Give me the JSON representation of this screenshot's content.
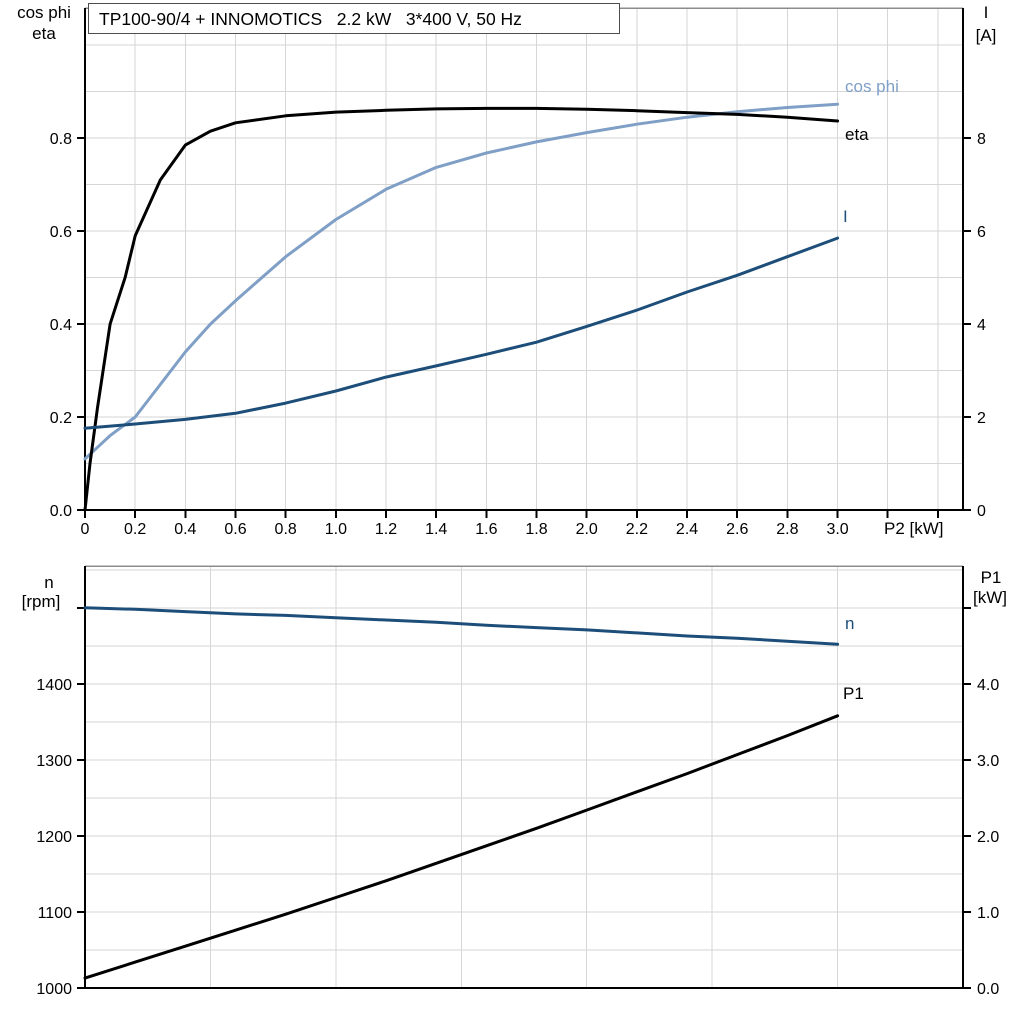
{
  "chart_data": {
    "type": "line",
    "charts": [
      {
        "id": "top",
        "title": "TP100-90/4 + INNOMOTICS   2.2 kW   3*400 V, 50 Hz",
        "x_axis": {
          "title": "P2 [kW]",
          "min": 0,
          "max": 3.5,
          "grid_step": 0.2,
          "ticks": [
            0,
            0.2,
            0.4,
            0.6,
            0.8,
            1.0,
            1.2,
            1.4,
            1.6,
            1.8,
            2.0,
            2.2,
            2.4,
            2.6,
            2.8,
            3.0,
            3.2,
            3.4
          ],
          "tick_labels": [
            "0",
            "0.2",
            "0.4",
            "0.6",
            "0.8",
            "1.0",
            "1.2",
            "1.4",
            "1.6",
            "1.8",
            "2.0",
            "2.2",
            "2.4",
            "2.6",
            "2.8",
            "3.0",
            "",
            ""
          ]
        },
        "left_axis": {
          "title_lines": [
            "cos phi",
            "eta"
          ],
          "min": 0,
          "max": 1.08,
          "grid_step": 0.1,
          "ticks": [
            0,
            0.2,
            0.4,
            0.6,
            0.8
          ],
          "tick_labels": [
            "0.0",
            "0.2",
            "0.4",
            "0.6",
            "0.8"
          ]
        },
        "right_axis": {
          "title_lines": [
            "I",
            "[A]"
          ],
          "min": 0,
          "max": 10.8,
          "ticks": [
            0,
            2,
            4,
            6,
            8
          ],
          "tick_labels": [
            "0",
            "2",
            "4",
            "6",
            "8"
          ]
        },
        "series": [
          {
            "name": "cos phi",
            "axis": "left",
            "color": "#7f9fc6",
            "x": [
              0,
              0.05,
              0.1,
              0.15,
              0.2,
              0.3,
              0.4,
              0.5,
              0.6,
              0.8,
              1.0,
              1.2,
              1.4,
              1.6,
              1.8,
              2.0,
              2.2,
              2.4,
              2.6,
              2.8,
              3.0
            ],
            "values": [
              0.11,
              0.135,
              0.16,
              0.18,
              0.2,
              0.27,
              0.34,
              0.4,
              0.45,
              0.545,
              0.625,
              0.69,
              0.737,
              0.768,
              0.792,
              0.812,
              0.83,
              0.845,
              0.857,
              0.866,
              0.873
            ]
          },
          {
            "name": "eta",
            "axis": "left",
            "color": "#000000",
            "x": [
              0,
              0.02,
              0.05,
              0.1,
              0.16,
              0.2,
              0.3,
              0.4,
              0.5,
              0.6,
              0.8,
              1.0,
              1.2,
              1.4,
              1.6,
              1.8,
              2.0,
              2.2,
              2.4,
              2.6,
              2.8,
              3.0
            ],
            "values": [
              0,
              0.1,
              0.22,
              0.4,
              0.5,
              0.59,
              0.71,
              0.785,
              0.815,
              0.833,
              0.848,
              0.856,
              0.86,
              0.863,
              0.864,
              0.864,
              0.862,
              0.859,
              0.855,
              0.851,
              0.845,
              0.837
            ]
          },
          {
            "name": "I",
            "axis": "right",
            "color": "#1d4e79",
            "x": [
              0,
              0.2,
              0.4,
              0.6,
              0.8,
              1.0,
              1.2,
              1.4,
              1.6,
              1.8,
              2.0,
              2.2,
              2.4,
              2.6,
              2.8,
              3.0
            ],
            "values": [
              1.76,
              1.85,
              1.95,
              2.08,
              2.3,
              2.56,
              2.86,
              3.1,
              3.35,
              3.61,
              3.95,
              4.3,
              4.69,
              5.05,
              5.45,
              5.85
            ]
          }
        ]
      },
      {
        "id": "bottom",
        "title": "",
        "x_axis": {
          "title": "",
          "min": 0,
          "max": 3.5,
          "grid_step": 0.5,
          "ticks": [],
          "tick_labels": []
        },
        "left_axis": {
          "title_lines": [
            "n",
            "[rpm]"
          ],
          "min": 1000,
          "max": 1555,
          "grid_step": 50,
          "ticks": [
            1000,
            1100,
            1200,
            1300,
            1400,
            1500
          ],
          "tick_labels": [
            "1000",
            "1100",
            "1200",
            "1300",
            "1400",
            ""
          ]
        },
        "right_axis": {
          "title_lines": [
            "P1",
            "[kW]"
          ],
          "min": 0,
          "max": 5.55,
          "ticks": [
            0,
            1,
            2,
            3,
            4,
            5
          ],
          "tick_labels": [
            "0.0",
            "1.0",
            "2.0",
            "3.0",
            "4.0",
            ""
          ]
        },
        "series": [
          {
            "name": "n",
            "axis": "left",
            "color": "#1d4e79",
            "x": [
              0,
              0.2,
              0.4,
              0.6,
              0.8,
              1.0,
              1.2,
              1.4,
              1.6,
              1.8,
              2.0,
              2.2,
              2.4,
              2.6,
              2.8,
              3.0
            ],
            "values": [
              1500,
              1498,
              1495,
              1492,
              1490,
              1487,
              1484,
              1481,
              1477,
              1474,
              1471,
              1467,
              1463,
              1460,
              1456,
              1452
            ]
          },
          {
            "name": "P1",
            "axis": "right",
            "color": "#000000",
            "x": [
              0,
              0.2,
              0.4,
              0.6,
              0.8,
              1.0,
              1.2,
              1.4,
              1.6,
              1.8,
              2.0,
              2.2,
              2.4,
              2.6,
              2.8,
              3.0
            ],
            "values": [
              0.13,
              0.34,
              0.55,
              0.76,
              0.97,
              1.19,
              1.41,
              1.64,
              1.87,
              2.1,
              2.34,
              2.58,
              2.82,
              3.07,
              3.32,
              3.58
            ]
          }
        ]
      }
    ]
  },
  "colors": {
    "grid": "#d6d6d6",
    "plot_border": "#8c8c8c",
    "axis": "#000000",
    "light_blue": "#7f9fc6",
    "dark_blue": "#1d4e79",
    "background": "#ffffff"
  }
}
